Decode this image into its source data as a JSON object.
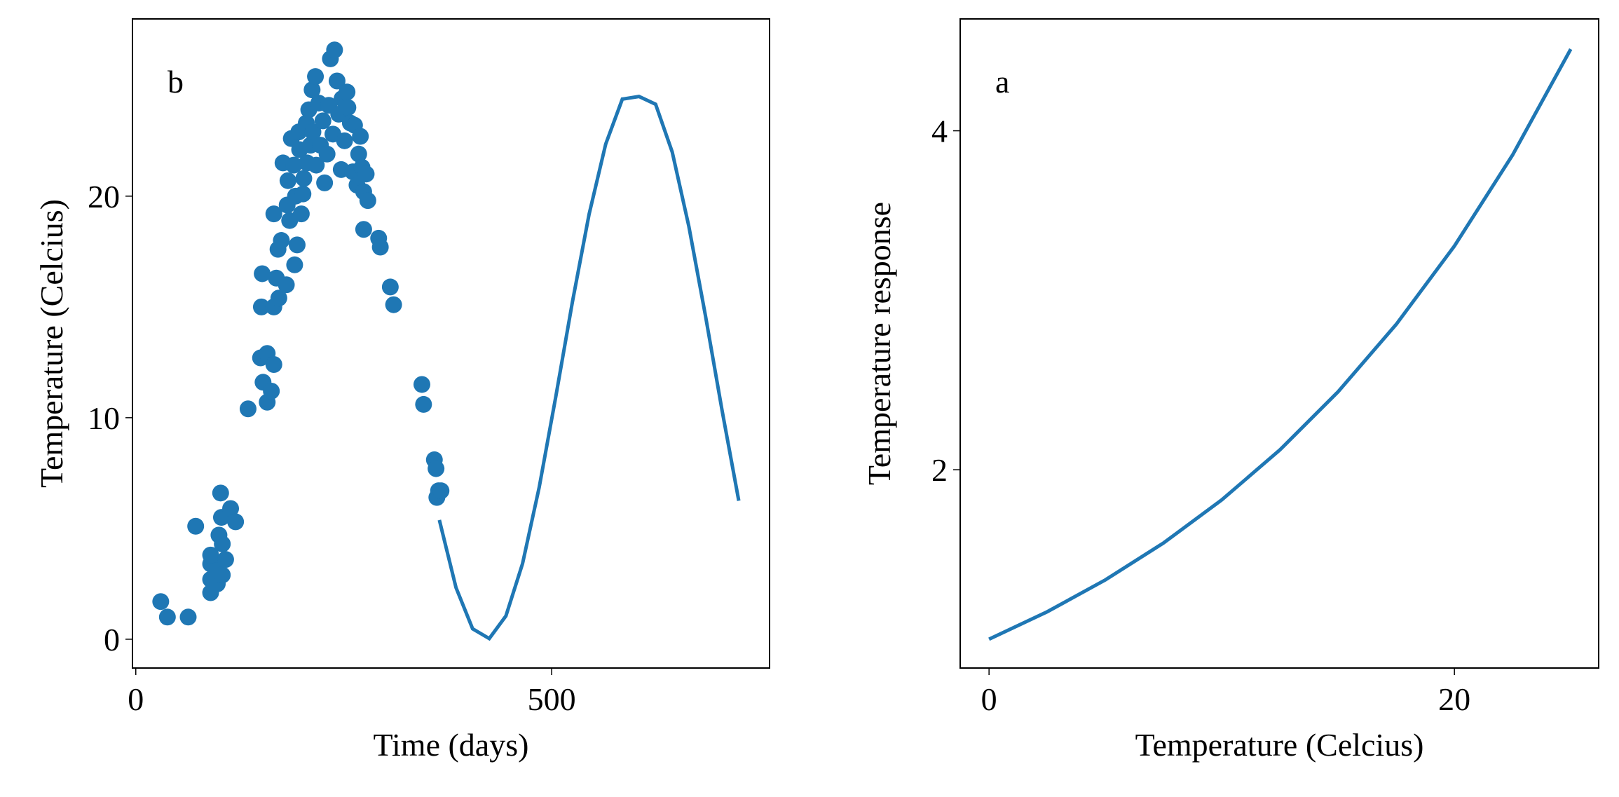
{
  "chart_data": [
    {
      "type": "scatter",
      "xlabel": "Time (days)",
      "ylabel": "Temperature (Celcius)",
      "annotation": "b",
      "xlim": [
        -4,
        762
      ],
      "ylim": [
        -1.3,
        28
      ],
      "xticks": [
        0,
        500
      ],
      "yticks": [
        0,
        10,
        20
      ],
      "series": [
        {
          "type": "scatter",
          "color": "#1f77b4",
          "x": [
            30,
            38,
            63,
            72,
            90,
            90,
            90,
            90,
            98,
            98,
            100,
            102,
            103,
            104,
            104,
            108,
            114,
            120,
            135,
            151,
            152,
            150,
            153,
            158,
            158,
            163,
            166,
            166,
            166,
            169,
            171,
            172,
            175,
            177,
            181,
            182,
            183,
            185,
            187,
            190,
            191,
            192,
            194,
            196,
            197,
            199,
            201,
            202,
            205,
            206,
            208,
            210,
            212,
            213,
            216,
            217,
            220,
            222,
            225,
            227,
            230,
            232,
            234,
            237,
            239,
            242,
            244,
            247,
            248,
            251,
            254,
            255,
            258,
            261,
            263,
            266,
            268,
            270,
            272,
            274,
            277,
            279,
            274,
            292,
            294,
            306,
            310,
            344,
            346,
            359,
            361,
            364,
            362,
            367
          ],
          "values": [
            1.7,
            1.0,
            1.0,
            5.1,
            2.1,
            2.7,
            3.4,
            3.8,
            2.5,
            3.1,
            4.7,
            6.6,
            5.5,
            4.3,
            2.9,
            3.6,
            5.9,
            5.3,
            10.4,
            15.0,
            16.5,
            12.7,
            11.6,
            12.9,
            10.7,
            11.2,
            12.4,
            15.0,
            19.2,
            16.3,
            17.6,
            15.4,
            18.0,
            21.5,
            16.0,
            19.6,
            20.7,
            18.9,
            22.6,
            21.4,
            16.9,
            20.0,
            17.8,
            22.9,
            22.1,
            19.2,
            20.1,
            20.8,
            23.3,
            21.5,
            23.9,
            22.3,
            24.8,
            22.9,
            25.4,
            21.4,
            24.2,
            22.3,
            23.4,
            20.6,
            21.9,
            24.1,
            26.2,
            22.8,
            26.6,
            25.2,
            23.7,
            21.2,
            24.4,
            22.5,
            24.7,
            24.0,
            23.3,
            21.1,
            23.2,
            20.5,
            21.9,
            22.7,
            21.3,
            20.2,
            21.0,
            19.8,
            18.5,
            18.1,
            17.7,
            15.9,
            15.1,
            11.5,
            10.6,
            8.1,
            7.7,
            6.7,
            6.4,
            6.7
          ]
        },
        {
          "type": "line",
          "color": "#1f77b4",
          "x": [
            365,
            385,
            405,
            425,
            445,
            465,
            485,
            505,
            525,
            545,
            565,
            585,
            605,
            625,
            645,
            665,
            685,
            705,
            725
          ],
          "values": [
            5.38,
            2.33,
            0.47,
            0.03,
            1.05,
            3.41,
            6.85,
            10.95,
            15.23,
            19.18,
            22.35,
            24.38,
            24.5,
            24.15,
            21.99,
            18.63,
            14.59,
            10.31,
            6.25
          ]
        }
      ]
    },
    {
      "type": "line",
      "xlabel": "Temperature (Celcius)",
      "ylabel": "Temperature response",
      "annotation": "a",
      "xlim": [
        -1.24,
        26.2
      ],
      "ylim": [
        0.83,
        4.66
      ],
      "xticks": [
        0,
        20
      ],
      "yticks": [
        2,
        4
      ],
      "series": [
        {
          "type": "line",
          "color": "#1f77b4",
          "x": [
            0,
            2.5,
            5,
            7.5,
            10,
            12.5,
            15,
            17.5,
            20,
            22.5,
            25
          ],
          "values": [
            1,
            1.162,
            1.35,
            1.568,
            1.822,
            2.117,
            2.46,
            2.858,
            3.32,
            3.857,
            4.482
          ]
        }
      ]
    }
  ]
}
